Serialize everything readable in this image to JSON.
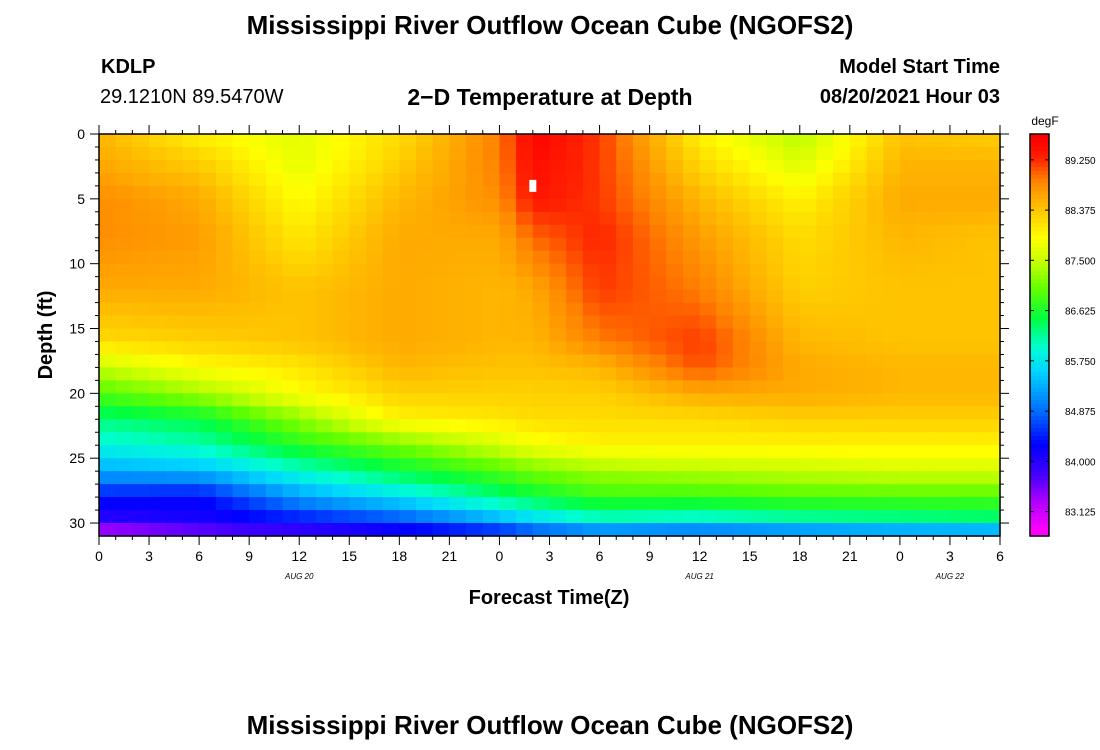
{
  "header": {
    "title": "Mississippi River Outflow Ocean Cube (NGOFS2)",
    "station": "KDLP",
    "coordinates": "29.1210N  89.5470W",
    "subtitle": "2−D Temperature at Depth",
    "model_start_label": "Model Start Time",
    "model_start_value": "08/20/2021 Hour 03"
  },
  "footer": {
    "title": "Mississippi River Outflow Ocean Cube (NGOFS2)"
  },
  "chart_data": {
    "type": "heatmap",
    "xlabel": "Forecast Time(Z)",
    "ylabel": "Depth (ft)",
    "x_range_hours": [
      0,
      54
    ],
    "y_range_ft": [
      0,
      31
    ],
    "y_inverted": true,
    "x_ticks": [
      {
        "hour": 0,
        "label": "0"
      },
      {
        "hour": 3,
        "label": "3"
      },
      {
        "hour": 6,
        "label": "6"
      },
      {
        "hour": 9,
        "label": "9"
      },
      {
        "hour": 12,
        "label": "12"
      },
      {
        "hour": 15,
        "label": "15"
      },
      {
        "hour": 18,
        "label": "18"
      },
      {
        "hour": 21,
        "label": "21"
      },
      {
        "hour": 24,
        "label": "0"
      },
      {
        "hour": 27,
        "label": "3"
      },
      {
        "hour": 30,
        "label": "6"
      },
      {
        "hour": 33,
        "label": "9"
      },
      {
        "hour": 36,
        "label": "12"
      },
      {
        "hour": 39,
        "label": "15"
      },
      {
        "hour": 42,
        "label": "18"
      },
      {
        "hour": 45,
        "label": "21"
      },
      {
        "hour": 48,
        "label": "0"
      },
      {
        "hour": 51,
        "label": "3"
      },
      {
        "hour": 54,
        "label": "6"
      }
    ],
    "date_labels": [
      {
        "hour": 12,
        "label": "AUG 20"
      },
      {
        "hour": 36,
        "label": "AUG 21"
      },
      {
        "hour": 51,
        "label": "AUG 22"
      }
    ],
    "y_ticks": [
      {
        "depth": 0,
        "label": "0"
      },
      {
        "depth": 5,
        "label": "5"
      },
      {
        "depth": 10,
        "label": "10"
      },
      {
        "depth": 15,
        "label": "15"
      },
      {
        "depth": 20,
        "label": "20"
      },
      {
        "depth": 25,
        "label": "25"
      },
      {
        "depth": 30,
        "label": "30"
      }
    ],
    "colorbar": {
      "units": "degF",
      "min": 82.7,
      "max": 89.7,
      "ticks": [
        {
          "value": 89.25,
          "label": "89.250"
        },
        {
          "value": 88.375,
          "label": "88.375"
        },
        {
          "value": 87.5,
          "label": "87.500"
        },
        {
          "value": 86.625,
          "label": "86.625"
        },
        {
          "value": 85.75,
          "label": "85.750"
        },
        {
          "value": 84.875,
          "label": "84.875"
        },
        {
          "value": 84.0,
          "label": "84.000"
        },
        {
          "value": 83.125,
          "label": "83.125"
        }
      ]
    },
    "color_scale": [
      {
        "value": 82.8,
        "color": "#ff00ff"
      },
      {
        "value": 83.3,
        "color": "#b000ff"
      },
      {
        "value": 83.8,
        "color": "#4000ff"
      },
      {
        "value": 84.3,
        "color": "#0000ff"
      },
      {
        "value": 84.9,
        "color": "#0070ff"
      },
      {
        "value": 85.6,
        "color": "#00d8ff"
      },
      {
        "value": 86.0,
        "color": "#00ffd0"
      },
      {
        "value": 86.5,
        "color": "#00ff40"
      },
      {
        "value": 87.0,
        "color": "#60ff00"
      },
      {
        "value": 87.5,
        "color": "#c8ff00"
      },
      {
        "value": 87.9,
        "color": "#ffff00"
      },
      {
        "value": 88.3,
        "color": "#ffd000"
      },
      {
        "value": 88.6,
        "color": "#ffaa00"
      },
      {
        "value": 88.9,
        "color": "#ff8000"
      },
      {
        "value": 89.3,
        "color": "#ff2000"
      },
      {
        "value": 89.6,
        "color": "#ff0000"
      }
    ],
    "missing_cell": {
      "hour": 26,
      "depth": 4,
      "color": "#ffffff"
    },
    "hours": [
      0,
      6,
      12,
      18,
      24,
      26,
      30,
      36,
      42,
      48,
      54
    ],
    "depths": [
      0,
      2,
      5,
      8,
      12,
      16,
      18,
      20,
      22,
      24,
      26,
      28,
      30,
      31
    ],
    "values": [
      [
        88.5,
        88.0,
        87.7,
        88.2,
        88.9,
        89.6,
        89.2,
        88.0,
        87.4,
        88.4,
        88.3
      ],
      [
        88.6,
        88.3,
        87.7,
        88.3,
        88.9,
        89.5,
        89.2,
        88.2,
        87.6,
        88.5,
        88.5
      ],
      [
        88.8,
        88.6,
        87.9,
        88.5,
        88.8,
        89.4,
        89.2,
        88.5,
        88.0,
        88.6,
        88.6
      ],
      [
        88.8,
        88.7,
        88.1,
        88.6,
        88.6,
        89.0,
        89.3,
        88.7,
        88.2,
        88.5,
        88.4
      ],
      [
        88.6,
        88.6,
        88.4,
        88.6,
        88.5,
        88.6,
        89.2,
        88.9,
        88.3,
        88.4,
        88.4
      ],
      [
        88.2,
        88.3,
        88.4,
        88.6,
        88.5,
        88.5,
        88.9,
        89.2,
        88.5,
        88.4,
        88.4
      ],
      [
        87.5,
        87.9,
        88.1,
        88.5,
        88.4,
        88.4,
        88.5,
        89.1,
        88.6,
        88.5,
        88.5
      ],
      [
        86.9,
        87.3,
        87.9,
        88.3,
        88.3,
        88.3,
        88.3,
        88.6,
        88.6,
        88.5,
        88.5
      ],
      [
        86.3,
        86.5,
        87.2,
        88.0,
        88.1,
        88.2,
        88.2,
        88.2,
        88.3,
        88.3,
        88.3
      ],
      [
        85.9,
        86.1,
        86.7,
        87.1,
        87.6,
        87.8,
        88.0,
        88.0,
        88.0,
        88.0,
        88.0
      ],
      [
        85.3,
        85.4,
        86.0,
        86.5,
        86.9,
        87.1,
        87.3,
        87.4,
        87.5,
        87.6,
        87.6
      ],
      [
        84.4,
        84.3,
        85.2,
        85.7,
        86.3,
        86.5,
        86.8,
        86.8,
        86.9,
        86.9,
        86.9
      ],
      [
        83.9,
        84.1,
        84.3,
        84.6,
        85.2,
        85.5,
        85.9,
        85.8,
        86.0,
        86.1,
        86.2
      ],
      [
        82.9,
        83.3,
        83.6,
        83.9,
        84.1,
        84.3,
        84.5,
        84.4,
        84.5,
        84.6,
        84.6
      ]
    ]
  }
}
